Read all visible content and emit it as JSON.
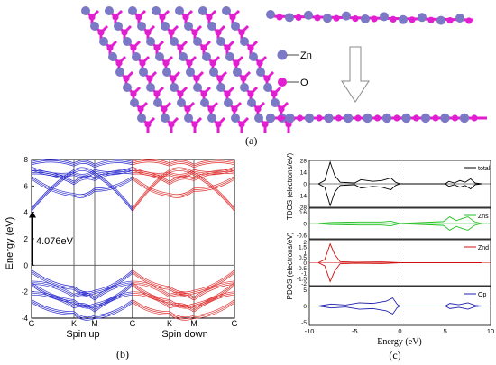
{
  "panels": {
    "a": {
      "label": "(a)",
      "legend": {
        "zn": "Zn",
        "o": "O"
      },
      "colors": {
        "zn": "#7b78c6",
        "o": "#e11fd1"
      }
    },
    "b": {
      "label": "(b)",
      "ylabel": "Energy (eV)",
      "gap_label": "4.076eV",
      "xticks": [
        "G",
        "K",
        "M",
        "G",
        "K",
        "M",
        "G"
      ],
      "spin_labels": [
        "Spin up",
        "Spin down"
      ],
      "colors": {
        "spin_up": "#2a2acf",
        "spin_down": "#e03030"
      }
    },
    "c": {
      "label": "(c)",
      "ylabel_tdos": "TDOS (electrons/eV)",
      "ylabel_pdos": "PDOS (electrons/eV)",
      "xlabel": "Energy (eV)",
      "legends": [
        "total",
        "Zns",
        "Znd",
        "Op"
      ],
      "colors": [
        "#000000",
        "#1fc01f",
        "#d01010",
        "#2020b0"
      ]
    }
  },
  "chart_data": [
    {
      "type": "line",
      "title": "",
      "ylabel": "Energy (eV)",
      "ylim": [
        -4,
        8
      ],
      "yticks": [
        -4,
        -2,
        0,
        2,
        4,
        6,
        8
      ],
      "xticks": [
        "G",
        "K",
        "M",
        "G",
        "K",
        "M",
        "G"
      ],
      "fermi_level": 0,
      "band_gap_eV": 4.076,
      "series": [
        {
          "name": "Spin up",
          "bands": [
            [
              -0.35,
              -1.6,
              -1.9,
              -0.35
            ],
            [
              -1.2,
              -2.2,
              -2.4,
              -1.2
            ],
            [
              -1.3,
              -2.6,
              -2.9,
              -1.3
            ],
            [
              -2.0,
              -3.0,
              -3.3,
              -2.0
            ],
            [
              -2.6,
              -3.5,
              -3.8,
              -2.6
            ],
            [
              4.08,
              7.0,
              6.8,
              4.08
            ],
            [
              6.5,
              5.2,
              5.6,
              6.5
            ],
            [
              6.9,
              6.1,
              6.4,
              6.9
            ],
            [
              7.2,
              6.8,
              7.0,
              7.2
            ],
            [
              7.6,
              7.5,
              7.4,
              7.6
            ]
          ]
        },
        {
          "name": "Spin down",
          "bands": [
            [
              -0.35,
              -1.6,
              -1.9,
              -0.35
            ],
            [
              -1.2,
              -2.2,
              -2.4,
              -1.2
            ],
            [
              -1.3,
              -2.6,
              -2.9,
              -1.3
            ],
            [
              -2.0,
              -3.0,
              -3.3,
              -2.0
            ],
            [
              -2.6,
              -3.5,
              -3.8,
              -2.6
            ],
            [
              4.08,
              7.0,
              6.8,
              4.08
            ],
            [
              6.5,
              5.2,
              5.6,
              6.5
            ],
            [
              6.9,
              6.1,
              6.4,
              6.9
            ],
            [
              7.2,
              6.8,
              7.0,
              7.2
            ],
            [
              7.6,
              7.5,
              7.4,
              7.6
            ]
          ]
        }
      ]
    },
    {
      "type": "line",
      "title": "",
      "xlabel": "Energy (eV)",
      "xlim": [
        -10,
        10
      ],
      "xticks": [
        -10,
        -5,
        0,
        5,
        10
      ],
      "panels": [
        {
          "name": "total",
          "yticks": [
            28,
            14,
            0,
            -14,
            -28
          ],
          "ylim": [
            -28,
            28
          ],
          "points": [
            [
              -9,
              0
            ],
            [
              -8.3,
              4
            ],
            [
              -7.7,
              26
            ],
            [
              -7.2,
              10
            ],
            [
              -6.6,
              2
            ],
            [
              -5,
              1
            ],
            [
              -4.3,
              5
            ],
            [
              -3,
              3
            ],
            [
              -2,
              4
            ],
            [
              -1,
              7
            ],
            [
              -0.5,
              2
            ],
            [
              0,
              0
            ],
            [
              5,
              0
            ],
            [
              5.4,
              3
            ],
            [
              6,
              1
            ],
            [
              6.6,
              4
            ],
            [
              7.2,
              2
            ],
            [
              7.8,
              6
            ],
            [
              8.3,
              1
            ],
            [
              9,
              0
            ]
          ]
        },
        {
          "name": "Zns",
          "yticks": [
            0.6,
            0.0,
            -0.6
          ],
          "ylim": [
            -0.8,
            0.8
          ],
          "points": [
            [
              -9,
              0
            ],
            [
              -7.8,
              0.05
            ],
            [
              -4.5,
              0.08
            ],
            [
              -2,
              0.08
            ],
            [
              -1,
              0.12
            ],
            [
              0,
              0
            ],
            [
              4.8,
              0.1
            ],
            [
              5.5,
              0.35
            ],
            [
              6.2,
              0.15
            ],
            [
              6.8,
              0.25
            ],
            [
              7.5,
              0.35
            ],
            [
              8.2,
              0.1
            ],
            [
              9,
              0
            ]
          ]
        },
        {
          "name": "Znd",
          "yticks": [
            2.0,
            1.5,
            1.0,
            0.5,
            0.0,
            -0.5,
            -1.0,
            -1.5,
            -2.0
          ],
          "ylim": [
            -2.2,
            2.2
          ],
          "points": [
            [
              -9,
              0
            ],
            [
              -8.3,
              0.3
            ],
            [
              -7.7,
              1.8
            ],
            [
              -7.2,
              0.8
            ],
            [
              -6.6,
              0.1
            ],
            [
              -5,
              0.05
            ],
            [
              -2,
              0.08
            ],
            [
              0,
              0
            ],
            [
              9,
              0
            ]
          ]
        },
        {
          "name": "Op",
          "yticks": [
            5,
            0,
            -5
          ],
          "ylim": [
            -6,
            6
          ],
          "points": [
            [
              -9,
              0
            ],
            [
              -7.6,
              0.6
            ],
            [
              -6,
              0.3
            ],
            [
              -4.5,
              1.0
            ],
            [
              -3,
              0.8
            ],
            [
              -1.5,
              1.5
            ],
            [
              -0.8,
              2.5
            ],
            [
              -0.3,
              0.5
            ],
            [
              0,
              0
            ],
            [
              5,
              0
            ],
            [
              5.5,
              0.8
            ],
            [
              6.5,
              0.4
            ],
            [
              7.5,
              1.0
            ],
            [
              8.3,
              0.2
            ],
            [
              9,
              0
            ]
          ]
        }
      ]
    }
  ]
}
